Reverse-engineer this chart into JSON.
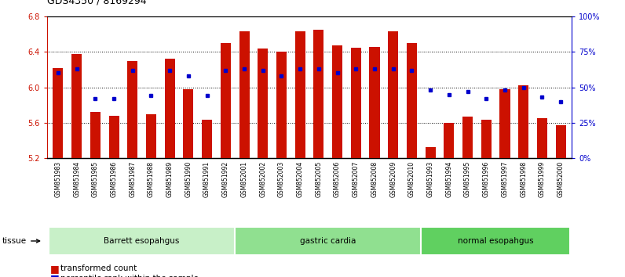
{
  "title": "GDS4350 / 8169294",
  "samples": [
    "GSM851983",
    "GSM851984",
    "GSM851985",
    "GSM851986",
    "GSM851987",
    "GSM851988",
    "GSM851989",
    "GSM851990",
    "GSM851991",
    "GSM851992",
    "GSM852001",
    "GSM852002",
    "GSM852003",
    "GSM852004",
    "GSM852005",
    "GSM852006",
    "GSM852007",
    "GSM852008",
    "GSM852009",
    "GSM852010",
    "GSM851993",
    "GSM851994",
    "GSM851995",
    "GSM851996",
    "GSM851997",
    "GSM851998",
    "GSM851999",
    "GSM852000"
  ],
  "red_values": [
    6.22,
    6.38,
    5.72,
    5.68,
    6.3,
    5.69,
    6.32,
    5.98,
    5.63,
    6.5,
    6.63,
    6.44,
    6.4,
    6.63,
    6.65,
    6.47,
    6.45,
    6.46,
    6.63,
    6.5,
    5.32,
    5.6,
    5.67,
    5.63,
    5.98,
    6.02,
    5.65,
    5.57
  ],
  "blue_percentiles": [
    60,
    63,
    42,
    42,
    62,
    44,
    62,
    58,
    44,
    62,
    63,
    62,
    58,
    63,
    63,
    60,
    63,
    63,
    63,
    62,
    48,
    45,
    47,
    42,
    48,
    50,
    43,
    40
  ],
  "groups": [
    {
      "label": "Barrett esopahgus",
      "start": 0,
      "end": 9,
      "color": "#c8f0c8"
    },
    {
      "label": "gastric cardia",
      "start": 10,
      "end": 19,
      "color": "#90e090"
    },
    {
      "label": "normal esopahgus",
      "start": 20,
      "end": 27,
      "color": "#60d060"
    }
  ],
  "ylim": [
    5.2,
    6.8
  ],
  "yticks": [
    5.2,
    5.6,
    6.0,
    6.4,
    6.8
  ],
  "right_yticks": [
    0,
    25,
    50,
    75,
    100
  ],
  "right_ylabels": [
    "0%",
    "25%",
    "50%",
    "75%",
    "100%"
  ],
  "bar_width": 0.55,
  "bar_color": "#cc1100",
  "dot_color": "#0000cc",
  "bg_color": "#ffffff",
  "title_fontsize": 9,
  "tick_fontsize": 6,
  "label_fontsize": 8
}
